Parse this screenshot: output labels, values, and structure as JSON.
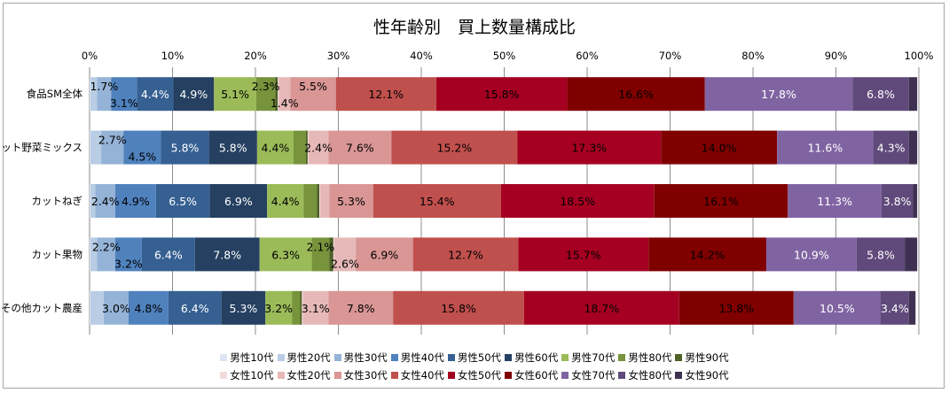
{
  "chart_data": {
    "type": "bar",
    "orientation": "horizontal",
    "stacked": "percent",
    "title": "性年齢別　買上数量構成比",
    "xlim": [
      0,
      100
    ],
    "x_ticks": [
      "0%",
      "10%",
      "20%",
      "30%",
      "40%",
      "50%",
      "60%",
      "70%",
      "80%",
      "90%",
      "100%"
    ],
    "grid": true,
    "legend_position": "bottom",
    "categories": [
      "食品SM全体",
      "カット野菜ミックス",
      "カットねぎ",
      "カット果物",
      "その他カット農産"
    ],
    "series": [
      {
        "name": "男性10代",
        "color": "#dce6f2",
        "values": [
          0.1,
          0.1,
          0.1,
          0.1,
          0.1
        ],
        "labels": [
          null,
          null,
          null,
          null,
          null
        ]
      },
      {
        "name": "男性20代",
        "color": "#b9cde5",
        "values": [
          0.8,
          1.3,
          0.6,
          0.8,
          1.6
        ],
        "labels": [
          null,
          null,
          null,
          null,
          null
        ]
      },
      {
        "name": "男性30代",
        "color": "#95b3d7",
        "values": [
          1.7,
          2.7,
          2.4,
          2.2,
          3.0
        ],
        "labels": [
          "1.7%",
          "2.7%",
          "2.4%",
          "2.2%",
          "3.0%"
        ]
      },
      {
        "name": "男性40代",
        "color": "#4f81bd",
        "values": [
          3.1,
          4.5,
          4.9,
          3.2,
          4.8
        ],
        "labels": [
          "3.1%",
          "4.5%",
          "4.9%",
          "3.2%",
          "4.8%"
        ]
      },
      {
        "name": "男性50代",
        "color": "#366092",
        "values": [
          4.4,
          5.8,
          6.5,
          6.4,
          6.4
        ],
        "labels": [
          "4.4%",
          "5.8%",
          "6.5%",
          "6.4%",
          "6.4%"
        ]
      },
      {
        "name": "男性60代",
        "color": "#254061",
        "values": [
          4.9,
          5.8,
          6.9,
          7.8,
          5.3
        ],
        "labels": [
          "4.9%",
          "5.8%",
          "6.9%",
          "7.8%",
          "5.3%"
        ]
      },
      {
        "name": "男性70代",
        "color": "#9bbb59",
        "values": [
          5.1,
          4.4,
          4.4,
          6.3,
          3.2
        ],
        "labels": [
          "5.1%",
          "4.4%",
          "4.4%",
          "6.3%",
          "3.2%"
        ]
      },
      {
        "name": "男性80代",
        "color": "#77933c",
        "values": [
          2.3,
          1.5,
          1.6,
          2.1,
          1.0
        ],
        "labels": [
          "2.3%",
          null,
          null,
          "2.1%",
          null
        ]
      },
      {
        "name": "男性90代",
        "color": "#4f6228",
        "values": [
          0.3,
          0.2,
          0.3,
          0.5,
          0.2
        ],
        "labels": [
          null,
          null,
          null,
          null,
          null
        ]
      },
      {
        "name": "女性10代",
        "color": "#f2dcdb",
        "values": [
          0.1,
          0.1,
          0.1,
          0.1,
          0.1
        ],
        "labels": [
          null,
          null,
          null,
          null,
          null
        ]
      },
      {
        "name": "女性20代",
        "color": "#e6b9b8",
        "values": [
          1.4,
          2.4,
          1.1,
          2.6,
          3.1
        ],
        "labels": [
          "1.4%",
          "2.4%",
          null,
          "2.6%",
          "3.1%"
        ]
      },
      {
        "name": "女性30代",
        "color": "#d99694",
        "values": [
          5.5,
          7.6,
          5.3,
          6.9,
          7.8
        ],
        "labels": [
          "5.5%",
          "7.6%",
          "5.3%",
          "6.9%",
          "7.8%"
        ]
      },
      {
        "name": "女性40代",
        "color": "#c0504d",
        "values": [
          12.1,
          15.2,
          15.4,
          12.7,
          15.8
        ],
        "labels": [
          "12.1%",
          "15.2%",
          "15.4%",
          "12.7%",
          "15.8%"
        ]
      },
      {
        "name": "女性50代",
        "color": "#a50021",
        "values": [
          15.8,
          17.3,
          18.5,
          15.7,
          18.7
        ],
        "labels": [
          "15.8%",
          "17.3%",
          "18.5%",
          "15.7%",
          "18.7%"
        ]
      },
      {
        "name": "女性60代",
        "color": "#800000",
        "values": [
          16.6,
          14.0,
          16.1,
          14.2,
          13.8
        ],
        "labels": [
          "16.6%",
          "14.0%",
          "16.1%",
          "14.2%",
          "13.8%"
        ]
      },
      {
        "name": "女性70代",
        "color": "#8064a2",
        "values": [
          17.8,
          11.6,
          11.3,
          10.9,
          10.5
        ],
        "labels": [
          "17.8%",
          "11.6%",
          "11.3%",
          "10.9%",
          "10.5%"
        ]
      },
      {
        "name": "女性80代",
        "color": "#604a7b",
        "values": [
          6.8,
          4.3,
          3.8,
          5.8,
          3.4
        ],
        "labels": [
          "6.8%",
          "4.3%",
          "3.8%",
          "5.8%",
          "3.4%"
        ]
      },
      {
        "name": "女性90代",
        "color": "#3f3151",
        "values": [
          1.0,
          1.0,
          0.5,
          1.5,
          0.8
        ],
        "labels": [
          null,
          null,
          null,
          null,
          null
        ]
      }
    ]
  }
}
